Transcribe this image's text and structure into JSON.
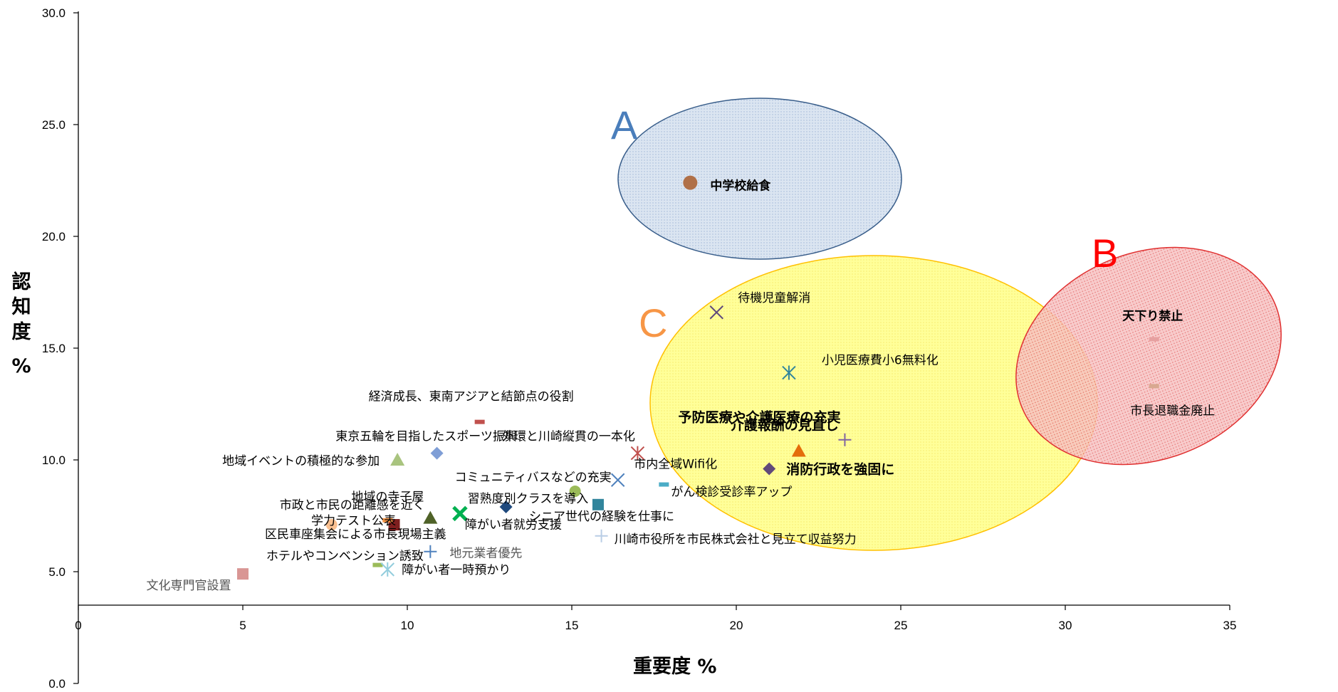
{
  "chart_data": {
    "type": "scatter",
    "xlabel": "重要度 %",
    "ylabel": "認知度 %",
    "xlim": [
      0,
      35
    ],
    "ylim": [
      0,
      30
    ],
    "x_ticks": [
      "0",
      "5",
      "10",
      "15",
      "20",
      "25",
      "30",
      "35"
    ],
    "y_ticks": [
      "0.0",
      "5.0",
      "10.0",
      "15.0",
      "20.0",
      "25.0",
      "30.0"
    ],
    "regions": [
      {
        "label": "A",
        "color": "#4a7ebb",
        "fill": "#dbe5f1",
        "stroke": "#385d8a"
      },
      {
        "label": "B",
        "color": "#ff0000",
        "fill": "#f4b4b4",
        "stroke": "#e03030"
      },
      {
        "label": "C",
        "color": "#f79646",
        "fill": "#ffff80",
        "stroke": "#ffc000"
      }
    ],
    "points": [
      {
        "label": "中学校給食",
        "x": 18.6,
        "y": 22.4,
        "marker": "circle",
        "color": "#b07048",
        "style": "big"
      },
      {
        "label": "待機児童解消",
        "x": 19.4,
        "y": 16.6,
        "marker": "x",
        "color": "#604a7b",
        "style": "normal"
      },
      {
        "label": "小児医療費小6無料化",
        "x": 21.6,
        "y": 13.9,
        "marker": "asterisk",
        "color": "#31859c",
        "style": "normal"
      },
      {
        "label": "予防医療や介護医療の充実",
        "x": 23.3,
        "y": 10.9,
        "marker": "plus",
        "color": "#8064a2",
        "style": "bold"
      },
      {
        "label": "介護報酬の見直し",
        "x": 21.9,
        "y": 10.4,
        "marker": "triangle",
        "color": "#e46c0a",
        "style": "bold"
      },
      {
        "label": "消防行政を強固に",
        "x": 21.0,
        "y": 9.6,
        "marker": "diamond",
        "color": "#60497a",
        "style": "bold"
      },
      {
        "label": "天下り禁止",
        "x": 32.7,
        "y": 15.4,
        "marker": "dash",
        "color": "#e6a0a0",
        "style": "boldred"
      },
      {
        "label": "市長退職金廃止",
        "x": 32.7,
        "y": 13.3,
        "marker": "dash",
        "color": "#d8a890",
        "style": "bigred"
      },
      {
        "label": "外環と川崎縦貫の一本化",
        "x": 17.0,
        "y": 10.3,
        "marker": "asterisk",
        "color": "#c0504d",
        "style": "normal"
      },
      {
        "label": "市内全域Wifi化",
        "x": 16.4,
        "y": 9.1,
        "marker": "x",
        "color": "#4f81bd",
        "style": "normal"
      },
      {
        "label": "がん検診受診率アップ",
        "x": 17.8,
        "y": 8.9,
        "marker": "dash",
        "color": "#4bacc6",
        "style": "normal"
      },
      {
        "label": "経済成長、東南アジアと結節点の役割",
        "x": 12.2,
        "y": 11.7,
        "marker": "dash",
        "color": "#c0504d",
        "style": "normal"
      },
      {
        "label": "東京五輪を目指したスポーツ振興",
        "x": 10.9,
        "y": 10.3,
        "marker": "diamond",
        "color": "#7f9ed6",
        "style": "normal"
      },
      {
        "label": "地域イベントの積極的な参加",
        "x": 9.7,
        "y": 10.0,
        "marker": "triangle",
        "color": "#a9c47f",
        "style": "normal"
      },
      {
        "label": "コミュニティバスなどの充実",
        "x": 15.1,
        "y": 8.6,
        "marker": "circle",
        "color": "#9bbb59",
        "style": "normal"
      },
      {
        "label": "習熟度別クラスを導入",
        "x": 13.0,
        "y": 7.9,
        "marker": "diamond",
        "color": "#1f497d",
        "style": "normal"
      },
      {
        "label": "シニア世代の経験を仕事に",
        "x": 15.8,
        "y": 8.0,
        "marker": "square",
        "color": "#31859c",
        "style": "normal"
      },
      {
        "label": "地域の寺子屋",
        "x": 10.7,
        "y": 7.4,
        "marker": "triangle",
        "color": "#4f6228",
        "style": "normal"
      },
      {
        "label": "障がい者就労支援",
        "x": 11.6,
        "y": 7.6,
        "marker": "x",
        "color": "#00b050",
        "style": "normal"
      },
      {
        "label": "学力テスト公表",
        "x": 9.6,
        "y": 7.1,
        "marker": "square",
        "color": "#7f1f1f",
        "style": "normal"
      },
      {
        "label": "市政と市民の距離感を近く",
        "x": 7.7,
        "y": 7.1,
        "marker": "circle",
        "color": "#fac090",
        "style": "normal"
      },
      {
        "label": "区民車座集会による市長現場主義",
        "x": 9.4,
        "y": 7.3,
        "marker": "dash",
        "color": "#f79646",
        "style": "normal"
      },
      {
        "label": "川崎市役所を市民株式会社と見立て収益努力",
        "x": 15.9,
        "y": 6.6,
        "marker": "plus",
        "color": "#b9cde5",
        "style": "normal"
      },
      {
        "label": "地元業者優先",
        "x": 10.7,
        "y": 5.9,
        "marker": "plus",
        "color": "#4f81bd",
        "style": "gray"
      },
      {
        "label": "ホテルやコンベンション誘致",
        "x": 9.1,
        "y": 5.3,
        "marker": "dash",
        "color": "#9bbb59",
        "style": "normal"
      },
      {
        "label": "障がい者一時預かり",
        "x": 9.4,
        "y": 5.1,
        "marker": "asterisk",
        "color": "#93cddd",
        "style": "normal"
      },
      {
        "label": "文化専門官設置",
        "x": 5.0,
        "y": 4.9,
        "marker": "square",
        "color": "#d99694",
        "style": "gray"
      }
    ]
  }
}
